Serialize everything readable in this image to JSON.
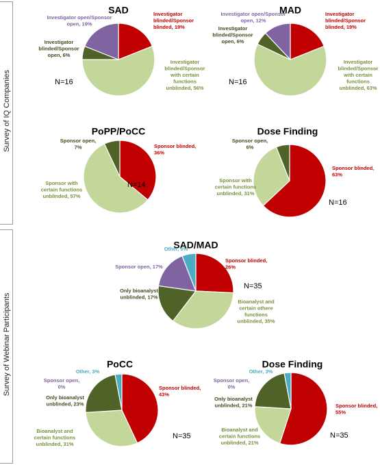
{
  "sections": [
    {
      "label": "Survey of IQ Companies"
    },
    {
      "label": "Survey of Webinar Participants"
    }
  ],
  "colors": {
    "red": "#c00000",
    "light_green": "#c4d79b",
    "dark_green": "#4f6228",
    "purple": "#8064a2",
    "blue": "#4bacc6"
  },
  "chart_data": [
    {
      "type": "pie",
      "title": "SAD",
      "n_label": "N=16",
      "slices": [
        {
          "label": "Investigator blinded/Sponsor blinded, 19%",
          "value": 19,
          "color": "#c00000"
        },
        {
          "label": "Investigator blinded/Sponsor with certain functions unblinded, 56%",
          "value": 56,
          "color": "#c4d79b"
        },
        {
          "label": "Investigator blinded/Sponsor open, 6%",
          "value": 6,
          "color": "#4f6228"
        },
        {
          "label": "Investigator open/Sponsor open, 19%",
          "value": 19,
          "color": "#8064a2"
        }
      ]
    },
    {
      "type": "pie",
      "title": "MAD",
      "n_label": "N=16",
      "slices": [
        {
          "label": "Investigator blinded/Sponsor blinded, 19%",
          "value": 19,
          "color": "#c00000"
        },
        {
          "label": "Investigator blinded/Sponsor with certain functions unblinded, 63%",
          "value": 63,
          "color": "#c4d79b"
        },
        {
          "label": "Investigator blinded/Sponsor open, 6%",
          "value": 6,
          "color": "#4f6228"
        },
        {
          "label": "Investigator open/Sponsor open, 12%",
          "value": 12,
          "color": "#8064a2"
        }
      ]
    },
    {
      "type": "pie",
      "title": "PoPP/PoCC",
      "n_label": "N=14",
      "slices": [
        {
          "label": "Sponsor blinded, 36%",
          "value": 36,
          "color": "#c00000"
        },
        {
          "label": "Sponsor with certain functions unblinded, 57%",
          "value": 57,
          "color": "#c4d79b"
        },
        {
          "label": "Sponsor open, 7%",
          "value": 7,
          "color": "#4f6228"
        }
      ]
    },
    {
      "type": "pie",
      "title": "Dose Finding",
      "n_label": "N=16",
      "slices": [
        {
          "label": "Sponsor blinded, 63%",
          "value": 63,
          "color": "#c00000"
        },
        {
          "label": "Sponsor with certain functions unblinded, 31%",
          "value": 31,
          "color": "#c4d79b"
        },
        {
          "label": "Sponsor open, 6%",
          "value": 6,
          "color": "#4f6228"
        }
      ]
    },
    {
      "type": "pie",
      "title": "SAD/MAD",
      "n_label": "N=35",
      "slices": [
        {
          "label": "Sponsor blinded, 26%",
          "value": 26,
          "color": "#c00000"
        },
        {
          "label": "Bioanalyst and certain othere functions unblinded, 35%",
          "value": 35,
          "color": "#c4d79b"
        },
        {
          "label": "Only bioanalyst unblinded, 17%",
          "value": 17,
          "color": "#4f6228"
        },
        {
          "label": "Sponsor open, 17%",
          "value": 17,
          "color": "#8064a2"
        },
        {
          "label": "Other, 6%",
          "value": 6,
          "color": "#4bacc6"
        }
      ]
    },
    {
      "type": "pie",
      "title": "PoCC",
      "n_label": "N=35",
      "slices": [
        {
          "label": "Sponsor blinded, 43%",
          "value": 43,
          "color": "#c00000"
        },
        {
          "label": "Bioanalyst and certain functions unblinded, 31%",
          "value": 31,
          "color": "#c4d79b"
        },
        {
          "label": "Only bioanalyst unblinded, 23%",
          "value": 23,
          "color": "#4f6228"
        },
        {
          "label": "Sponsor open, 0%",
          "value": 0,
          "color": "#8064a2"
        },
        {
          "label": "Other, 3%",
          "value": 3,
          "color": "#4bacc6"
        }
      ]
    },
    {
      "type": "pie",
      "title": "Dose Finding",
      "n_label": "N=35",
      "slices": [
        {
          "label": "Sponsor blinded, 55%",
          "value": 55,
          "color": "#c00000"
        },
        {
          "label": "Bioanalyst and certain functions unblinded, 21%",
          "value": 21,
          "color": "#c4d79b"
        },
        {
          "label": "Only bioanalyst unblinded, 21%",
          "value": 21,
          "color": "#4f6228"
        },
        {
          "label": "Sponsor open, 0%",
          "value": 0,
          "color": "#8064a2"
        },
        {
          "label": "Other, 3%",
          "value": 3,
          "color": "#4bacc6"
        }
      ]
    }
  ]
}
